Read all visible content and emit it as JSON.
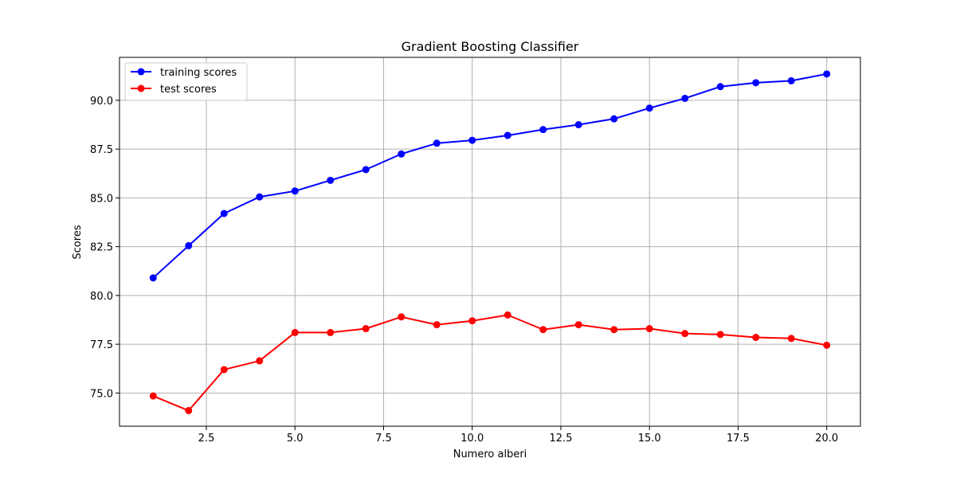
{
  "chart_data": {
    "type": "line",
    "title": "Gradient Boosting Classifier",
    "xlabel": "Numero alberi",
    "ylabel": "Scores",
    "xlim": [
      0.05,
      20.95
    ],
    "ylim": [
      73.3,
      92.2
    ],
    "xticks": [
      2.5,
      5.0,
      7.5,
      10.0,
      12.5,
      15.0,
      17.5,
      20.0
    ],
    "xtick_labels": [
      "2.5",
      "5.0",
      "7.5",
      "10.0",
      "12.5",
      "15.0",
      "17.5",
      "20.0"
    ],
    "yticks": [
      75.0,
      77.5,
      80.0,
      82.5,
      85.0,
      87.5,
      90.0
    ],
    "ytick_labels": [
      "75.0",
      "77.5",
      "80.0",
      "82.5",
      "85.0",
      "87.5",
      "90.0"
    ],
    "grid": true,
    "legend_position": "upper-left",
    "x": [
      1,
      2,
      3,
      4,
      5,
      6,
      7,
      8,
      9,
      10,
      11,
      12,
      13,
      14,
      15,
      16,
      17,
      18,
      19,
      20
    ],
    "series": [
      {
        "name": "training scores",
        "color": "#0000ff",
        "marker": "circle",
        "values": [
          80.9,
          82.55,
          84.2,
          85.05,
          85.35,
          85.9,
          86.45,
          87.25,
          87.8,
          87.95,
          88.2,
          88.5,
          88.75,
          89.05,
          89.6,
          90.1,
          90.7,
          90.9,
          91.0,
          91.35
        ]
      },
      {
        "name": "test scores",
        "color": "#ff0000",
        "marker": "circle",
        "values": [
          74.85,
          74.1,
          76.2,
          76.65,
          78.1,
          78.1,
          78.3,
          78.9,
          78.5,
          78.7,
          79.0,
          78.25,
          78.5,
          78.25,
          78.3,
          78.05,
          78.0,
          77.85,
          77.8,
          77.45
        ]
      }
    ]
  }
}
